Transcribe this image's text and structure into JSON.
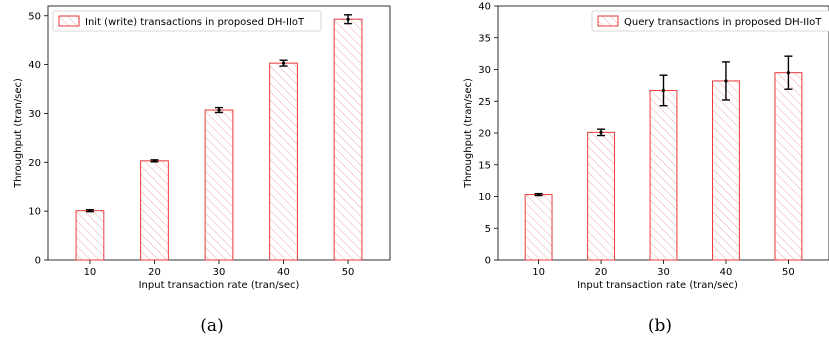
{
  "chart_data": [
    {
      "type": "bar",
      "categories": [
        "10",
        "20",
        "30",
        "40",
        "50"
      ],
      "values": [
        10.1,
        20.3,
        30.7,
        40.3,
        49.3
      ],
      "errors": [
        0.2,
        0.2,
        0.5,
        0.6,
        0.9
      ],
      "legend": "Init (write) transactions in proposed DH-IIoT",
      "xlabel": "Input transaction rate (tran/sec)",
      "ylabel": "Throughput (tran/sec)",
      "ylim": [
        0,
        52
      ],
      "yticks": [
        "0",
        "10",
        "20",
        "30",
        "40",
        "50"
      ],
      "ytick_values": [
        0,
        10,
        20,
        30,
        40,
        50
      ],
      "legend_position": "top-left",
      "grid": false,
      "bar_color": "#e8393b",
      "caption": "(a)"
    },
    {
      "type": "bar",
      "categories": [
        "10",
        "20",
        "30",
        "40",
        "50"
      ],
      "values": [
        10.3,
        20.1,
        26.7,
        28.2,
        29.5
      ],
      "errors": [
        0.15,
        0.5,
        2.4,
        3.0,
        2.6
      ],
      "legend": "Query transactions in proposed DH-IIoT",
      "xlabel": "Input transaction rate (tran/sec)",
      "ylabel": "Throughput (tran/sec)",
      "ylim": [
        0,
        40
      ],
      "yticks": [
        "0",
        "5",
        "10",
        "15",
        "20",
        "25",
        "30",
        "35",
        "40"
      ],
      "ytick_values": [
        0,
        5,
        10,
        15,
        20,
        25,
        30,
        35,
        40
      ],
      "legend_position": "top-right",
      "grid": false,
      "bar_color": "#e8393b",
      "caption": "(b)"
    }
  ]
}
